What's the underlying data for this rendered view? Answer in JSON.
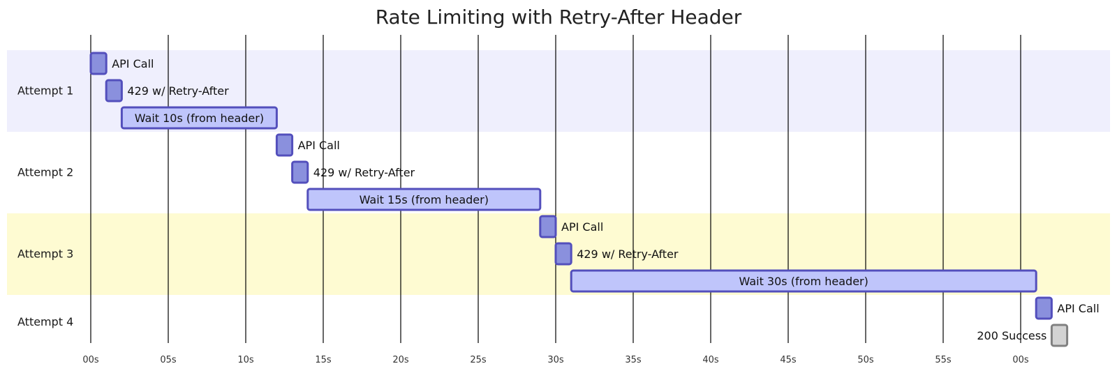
{
  "chart_data": {
    "type": "gantt",
    "title": "Rate Limiting with Retry-After Header",
    "x_unit": "seconds",
    "xlim": [
      0,
      65
    ],
    "grid": true,
    "ticks": [
      {
        "value": 0,
        "label": "00s"
      },
      {
        "value": 5,
        "label": "05s"
      },
      {
        "value": 10,
        "label": "10s"
      },
      {
        "value": 15,
        "label": "15s"
      },
      {
        "value": 20,
        "label": "20s"
      },
      {
        "value": 25,
        "label": "25s"
      },
      {
        "value": 30,
        "label": "30s"
      },
      {
        "value": 35,
        "label": "35s"
      },
      {
        "value": 40,
        "label": "40s"
      },
      {
        "value": 45,
        "label": "45s"
      },
      {
        "value": 50,
        "label": "50s"
      },
      {
        "value": 55,
        "label": "55s"
      },
      {
        "value": 60,
        "label": "00s"
      }
    ],
    "sections": [
      {
        "name": "Attempt 1",
        "color": "#efeffd",
        "tasks": [
          {
            "label": "API Call",
            "start": 0,
            "end": 1,
            "kind": "active"
          },
          {
            "label": "429 w/ Retry-After",
            "start": 1,
            "end": 2,
            "kind": "active"
          },
          {
            "label": "Wait 10s (from header)",
            "start": 2,
            "end": 12,
            "kind": "wait"
          }
        ]
      },
      {
        "name": "Attempt 2",
        "color": "#ffffff",
        "tasks": [
          {
            "label": "API Call",
            "start": 12,
            "end": 13,
            "kind": "active"
          },
          {
            "label": "429 w/ Retry-After",
            "start": 13,
            "end": 14,
            "kind": "active"
          },
          {
            "label": "Wait 15s (from header)",
            "start": 14,
            "end": 29,
            "kind": "wait"
          }
        ]
      },
      {
        "name": "Attempt 3",
        "color": "#fefbd2",
        "tasks": [
          {
            "label": "API Call",
            "start": 29,
            "end": 30,
            "kind": "active"
          },
          {
            "label": "429 w/ Retry-After",
            "start": 30,
            "end": 31,
            "kind": "active"
          },
          {
            "label": "Wait 30s (from header)",
            "start": 31,
            "end": 61,
            "kind": "wait"
          }
        ]
      },
      {
        "name": "Attempt 4",
        "color": "#ffffff",
        "tasks": [
          {
            "label": "API Call",
            "start": 61,
            "end": 62,
            "kind": "active"
          },
          {
            "label": "200 Success",
            "start": 62,
            "end": 63,
            "kind": "done",
            "label_side": "left"
          }
        ]
      }
    ],
    "colors": {
      "active_fill": "#8a90dd",
      "wait_fill": "#bfc5fb",
      "task_stroke": "#534fbc",
      "done_fill": "#d3d3d3",
      "done_stroke": "#808080"
    }
  }
}
